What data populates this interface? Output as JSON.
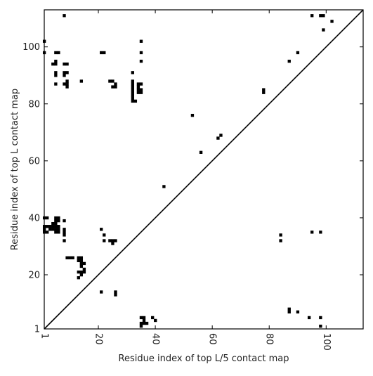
{
  "chart_data": {
    "type": "heatmap",
    "title": "",
    "xlabel": "Residue index of top L/5 contact map",
    "ylabel": "Residue index of top L contact map",
    "xlim": [
      1,
      113
    ],
    "ylim": [
      1,
      113
    ],
    "xticks": [
      1,
      20,
      40,
      60,
      80,
      100
    ],
    "yticks": [
      1,
      20,
      40,
      60,
      80,
      100
    ],
    "xtick_labels": [
      "1",
      "20",
      "40",
      "60",
      "80",
      "100"
    ],
    "ytick_labels": [
      "1",
      "20",
      "40",
      "60",
      "80",
      "100"
    ],
    "grid": false,
    "cell_color": "#000000",
    "diagonal": true,
    "upper_triangle_points": [
      [
        1,
        102
      ],
      [
        1,
        98
      ],
      [
        5,
        98
      ],
      [
        6,
        98
      ],
      [
        8,
        111
      ],
      [
        5,
        95
      ],
      [
        4,
        94
      ],
      [
        5,
        94
      ],
      [
        8,
        94
      ],
      [
        9,
        94
      ],
      [
        5,
        91
      ],
      [
        5,
        90
      ],
      [
        8,
        91
      ],
      [
        9,
        91
      ],
      [
        8,
        90
      ],
      [
        5,
        87
      ],
      [
        8,
        87
      ],
      [
        9,
        88
      ],
      [
        9,
        87
      ],
      [
        9,
        86
      ],
      [
        14,
        88
      ],
      [
        21,
        98
      ],
      [
        22,
        98
      ],
      [
        24,
        88
      ],
      [
        25,
        88
      ],
      [
        25,
        86
      ],
      [
        26,
        86
      ],
      [
        26,
        87
      ],
      [
        32,
        91
      ],
      [
        32,
        88
      ],
      [
        32,
        87
      ],
      [
        32,
        86
      ],
      [
        32,
        85
      ],
      [
        32,
        84
      ],
      [
        32,
        83
      ],
      [
        32,
        82
      ],
      [
        32,
        81
      ],
      [
        33,
        81
      ],
      [
        34,
        87
      ],
      [
        35,
        87
      ],
      [
        34,
        86
      ],
      [
        34,
        85
      ],
      [
        35,
        85
      ],
      [
        34,
        84
      ],
      [
        35,
        84
      ],
      [
        35,
        102
      ],
      [
        35,
        98
      ],
      [
        35,
        95
      ],
      [
        53,
        76
      ],
      [
        56,
        63
      ],
      [
        62,
        68
      ],
      [
        63,
        69
      ],
      [
        78,
        85
      ],
      [
        78,
        84
      ],
      [
        87,
        95
      ],
      [
        90,
        98
      ],
      [
        95,
        111
      ],
      [
        98,
        111
      ],
      [
        99,
        111
      ],
      [
        99,
        106
      ],
      [
        102,
        109
      ]
    ],
    "lower_triangle_points": [
      [
        1,
        40
      ],
      [
        2,
        40
      ],
      [
        1,
        37
      ],
      [
        2,
        37
      ],
      [
        3,
        37
      ],
      [
        1,
        36
      ],
      [
        1,
        35
      ],
      [
        2,
        35
      ],
      [
        3,
        36
      ],
      [
        4,
        36
      ],
      [
        4,
        38
      ],
      [
        5,
        38
      ],
      [
        4,
        37
      ],
      [
        5,
        37
      ],
      [
        5,
        39
      ],
      [
        6,
        39
      ],
      [
        5,
        40
      ],
      [
        6,
        40
      ],
      [
        5,
        36
      ],
      [
        6,
        36
      ],
      [
        5,
        35
      ],
      [
        6,
        35
      ],
      [
        6,
        37
      ],
      [
        8,
        39
      ],
      [
        8,
        36
      ],
      [
        8,
        35
      ],
      [
        8,
        34
      ],
      [
        8,
        32
      ],
      [
        9,
        26
      ],
      [
        10,
        26
      ],
      [
        11,
        26
      ],
      [
        13,
        26
      ],
      [
        14,
        26
      ],
      [
        13,
        25
      ],
      [
        14,
        25
      ],
      [
        14,
        24
      ],
      [
        14,
        23
      ],
      [
        15,
        24
      ],
      [
        13,
        21
      ],
      [
        14,
        21
      ],
      [
        15,
        21
      ],
      [
        15,
        22
      ],
      [
        13,
        19
      ],
      [
        14,
        20
      ],
      [
        21,
        36
      ],
      [
        22,
        34
      ],
      [
        22,
        32
      ],
      [
        24,
        32
      ],
      [
        25,
        32
      ],
      [
        26,
        32
      ],
      [
        25,
        31
      ],
      [
        21,
        14
      ],
      [
        26,
        14
      ],
      [
        26,
        13
      ],
      [
        35,
        5
      ],
      [
        36,
        5
      ],
      [
        36,
        4
      ],
      [
        35,
        3
      ],
      [
        36,
        3
      ],
      [
        37,
        3
      ],
      [
        35,
        2
      ],
      [
        39,
        5
      ],
      [
        40,
        4
      ],
      [
        43,
        51
      ],
      [
        84,
        34
      ],
      [
        84,
        32
      ],
      [
        87,
        8
      ],
      [
        87,
        7
      ],
      [
        90,
        7
      ],
      [
        94,
        5
      ],
      [
        95,
        35
      ],
      [
        98,
        35
      ],
      [
        98,
        5
      ],
      [
        98,
        2
      ]
    ]
  }
}
